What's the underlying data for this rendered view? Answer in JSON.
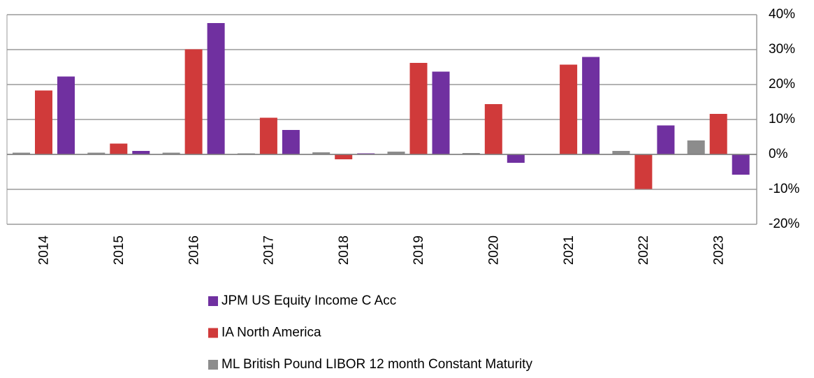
{
  "chart_data": {
    "type": "bar",
    "categories": [
      "2014",
      "2015",
      "2016",
      "2017",
      "2018",
      "2019",
      "2020",
      "2021",
      "2022",
      "2023"
    ],
    "series": [
      {
        "name": "ML British Pound LIBOR 12 month Constant Maturity",
        "color": "#8c8c8c",
        "values": [
          0.5,
          0.5,
          0.5,
          0.3,
          0.6,
          0.8,
          0.4,
          0.1,
          1.0,
          4.0
        ]
      },
      {
        "name": "IA North America",
        "color": "#d03a3a",
        "values": [
          18.3,
          3.1,
          30.1,
          10.5,
          -1.4,
          26.2,
          14.4,
          25.7,
          -9.9,
          11.6
        ]
      },
      {
        "name": "JPM US Equity Income C Acc",
        "color": "#7030a0",
        "values": [
          22.3,
          1.0,
          37.6,
          7.0,
          0.3,
          23.7,
          -2.4,
          27.9,
          8.3,
          -5.8
        ]
      }
    ],
    "legend_order": [
      2,
      1,
      0
    ],
    "ylim": [
      -20,
      40
    ],
    "yticks": [
      {
        "value": -20,
        "label": "-20%"
      },
      {
        "value": -10,
        "label": "-10%"
      },
      {
        "value": 0,
        "label": "0%"
      },
      {
        "value": 10,
        "label": "10%"
      },
      {
        "value": 20,
        "label": "20%"
      },
      {
        "value": 30,
        "label": "30%"
      },
      {
        "value": 40,
        "label": "40%"
      }
    ],
    "grid": true
  }
}
